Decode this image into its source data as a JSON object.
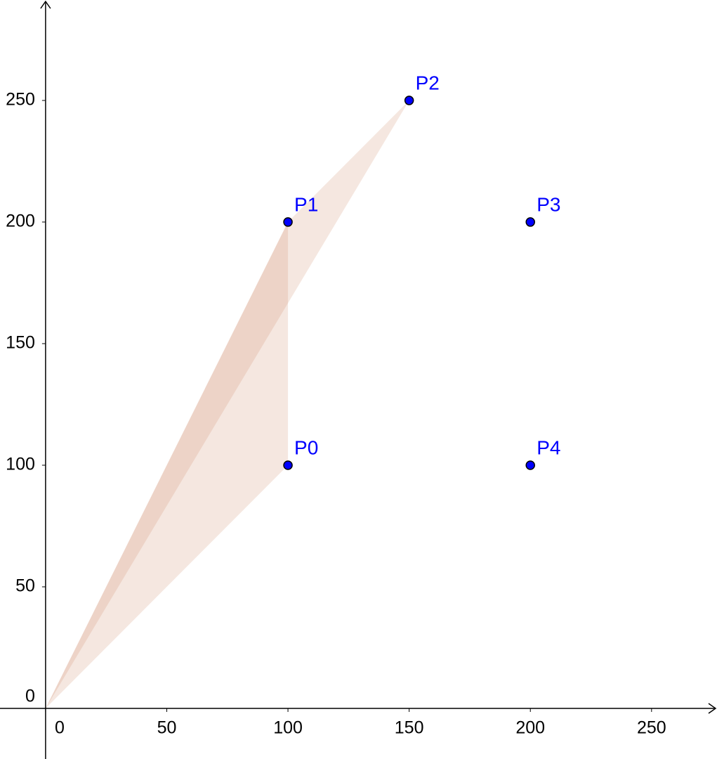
{
  "chart_data": {
    "type": "scatter",
    "x": [
      100,
      100,
      150,
      200,
      200
    ],
    "values": [
      100,
      200,
      250,
      200,
      100
    ],
    "point_labels": [
      "P0",
      "P1",
      "P2",
      "P3",
      "P4"
    ],
    "color": "#0000ff",
    "label_color": "#0000ff",
    "triangles": [
      {
        "x": [
          0,
          100,
          100
        ],
        "y": [
          0,
          100,
          200
        ]
      },
      {
        "x": [
          0,
          100,
          150
        ],
        "y": [
          0,
          200,
          250
        ]
      }
    ],
    "fill_color": "#cc8866",
    "xlim": [
      -18.8,
      277
    ],
    "ylim": [
      -20.8,
      291.3
    ],
    "xticks": [
      0,
      50,
      100,
      150,
      200,
      250
    ],
    "yticks": [
      0,
      50,
      100,
      150,
      200,
      250
    ],
    "grid": false
  }
}
